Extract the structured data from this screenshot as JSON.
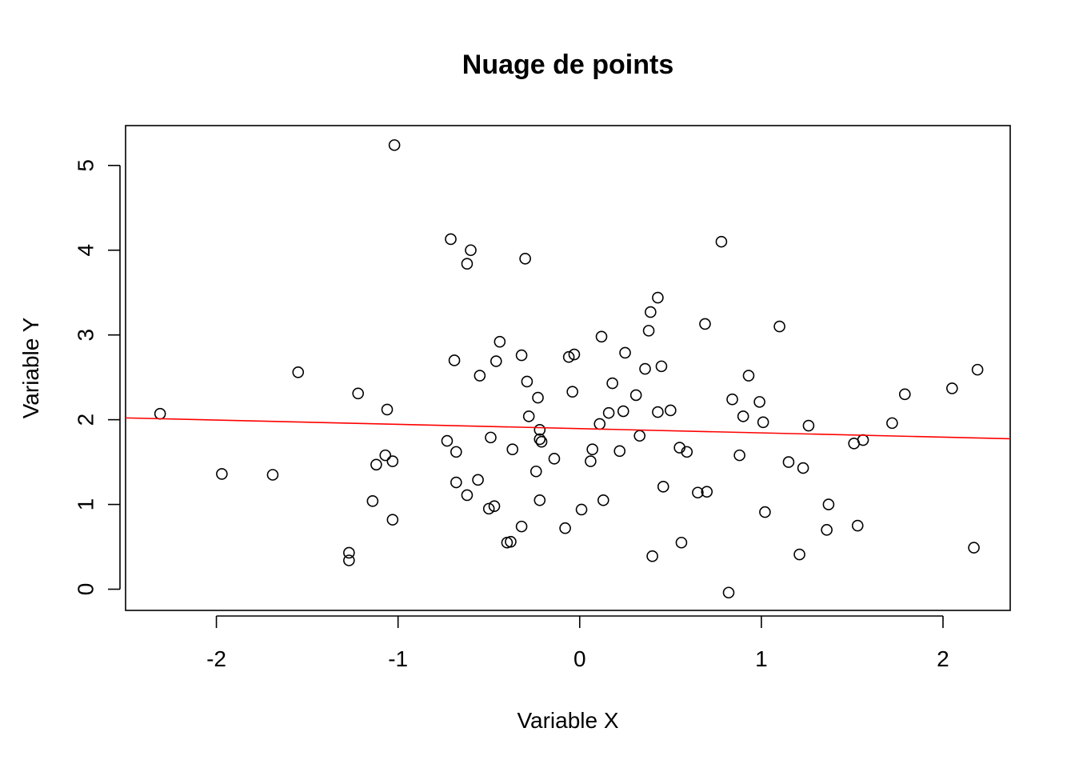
{
  "chart_data": {
    "type": "scatter",
    "title": "Nuage de points",
    "xlabel": "Variable X",
    "ylabel": "Variable Y",
    "xlim": [
      -2.5,
      2.37
    ],
    "ylim": [
      -0.25,
      5.47
    ],
    "x_ticks": [
      -2,
      -1,
      0,
      1,
      2
    ],
    "y_ticks": [
      0,
      1,
      2,
      3,
      4,
      5
    ],
    "x_tick_labels": [
      "-2",
      "-1",
      "0",
      "1",
      "2"
    ],
    "y_tick_labels": [
      "0",
      "1",
      "2",
      "3",
      "4",
      "5"
    ],
    "grid": false,
    "legend": "none",
    "regression_line": {
      "color": "#ff0000",
      "intercept": 1.895,
      "slope": -0.0505
    },
    "point_color": "#000000",
    "points": [
      [
        -2.31,
        2.07
      ],
      [
        -1.97,
        1.36
      ],
      [
        -1.69,
        1.35
      ],
      [
        -1.55,
        2.56
      ],
      [
        -1.27,
        0.43
      ],
      [
        -1.27,
        0.34
      ],
      [
        -1.22,
        2.31
      ],
      [
        -1.14,
        1.04
      ],
      [
        -1.12,
        1.47
      ],
      [
        -1.07,
        1.58
      ],
      [
        -1.06,
        2.12
      ],
      [
        -1.03,
        1.51
      ],
      [
        -1.03,
        0.82
      ],
      [
        -1.02,
        5.24
      ],
      [
        -0.73,
        1.75
      ],
      [
        -0.71,
        4.13
      ],
      [
        -0.69,
        2.7
      ],
      [
        -0.68,
        1.62
      ],
      [
        -0.68,
        1.26
      ],
      [
        -0.62,
        1.11
      ],
      [
        -0.62,
        3.84
      ],
      [
        -0.6,
        4.0
      ],
      [
        -0.56,
        1.29
      ],
      [
        -0.55,
        2.52
      ],
      [
        -0.5,
        0.95
      ],
      [
        -0.49,
        1.79
      ],
      [
        -0.47,
        0.98
      ],
      [
        -0.46,
        2.69
      ],
      [
        -0.44,
        2.92
      ],
      [
        -0.4,
        0.55
      ],
      [
        -0.38,
        0.56
      ],
      [
        -0.37,
        1.65
      ],
      [
        -0.32,
        0.74
      ],
      [
        -0.32,
        2.76
      ],
      [
        -0.3,
        3.9
      ],
      [
        -0.29,
        2.45
      ],
      [
        -0.28,
        2.04
      ],
      [
        -0.24,
        1.39
      ],
      [
        -0.23,
        2.26
      ],
      [
        -0.22,
        1.88
      ],
      [
        -0.22,
        1.05
      ],
      [
        -0.22,
        1.77
      ],
      [
        -0.21,
        1.74
      ],
      [
        -0.14,
        1.54
      ],
      [
        -0.08,
        0.72
      ],
      [
        -0.06,
        2.74
      ],
      [
        -0.04,
        2.33
      ],
      [
        -0.03,
        2.77
      ],
      [
        0.01,
        0.94
      ],
      [
        0.06,
        1.51
      ],
      [
        0.07,
        1.65
      ],
      [
        0.11,
        1.95
      ],
      [
        0.12,
        2.98
      ],
      [
        0.13,
        1.05
      ],
      [
        0.16,
        2.08
      ],
      [
        0.18,
        2.43
      ],
      [
        0.22,
        1.63
      ],
      [
        0.24,
        2.1
      ],
      [
        0.25,
        2.79
      ],
      [
        0.31,
        2.29
      ],
      [
        0.33,
        1.81
      ],
      [
        0.36,
        2.6
      ],
      [
        0.38,
        3.05
      ],
      [
        0.39,
        3.27
      ],
      [
        0.4,
        0.39
      ],
      [
        0.43,
        3.44
      ],
      [
        0.43,
        2.09
      ],
      [
        0.45,
        2.63
      ],
      [
        0.46,
        1.21
      ],
      [
        0.5,
        2.11
      ],
      [
        0.55,
        1.67
      ],
      [
        0.56,
        0.55
      ],
      [
        0.59,
        1.62
      ],
      [
        0.65,
        1.14
      ],
      [
        0.69,
        3.13
      ],
      [
        0.7,
        1.15
      ],
      [
        0.78,
        4.1
      ],
      [
        0.82,
        -0.04
      ],
      [
        0.84,
        2.24
      ],
      [
        0.88,
        1.58
      ],
      [
        0.9,
        2.04
      ],
      [
        0.93,
        2.52
      ],
      [
        0.99,
        2.21
      ],
      [
        1.01,
        1.97
      ],
      [
        1.02,
        0.91
      ],
      [
        1.1,
        3.1
      ],
      [
        1.15,
        1.5
      ],
      [
        1.21,
        0.41
      ],
      [
        1.23,
        1.43
      ],
      [
        1.26,
        1.93
      ],
      [
        1.36,
        0.7
      ],
      [
        1.37,
        1.0
      ],
      [
        1.51,
        1.72
      ],
      [
        1.53,
        0.75
      ],
      [
        1.56,
        1.76
      ],
      [
        1.72,
        1.96
      ],
      [
        1.79,
        2.3
      ],
      [
        2.05,
        2.37
      ],
      [
        2.17,
        0.49
      ],
      [
        2.19,
        2.59
      ]
    ]
  }
}
